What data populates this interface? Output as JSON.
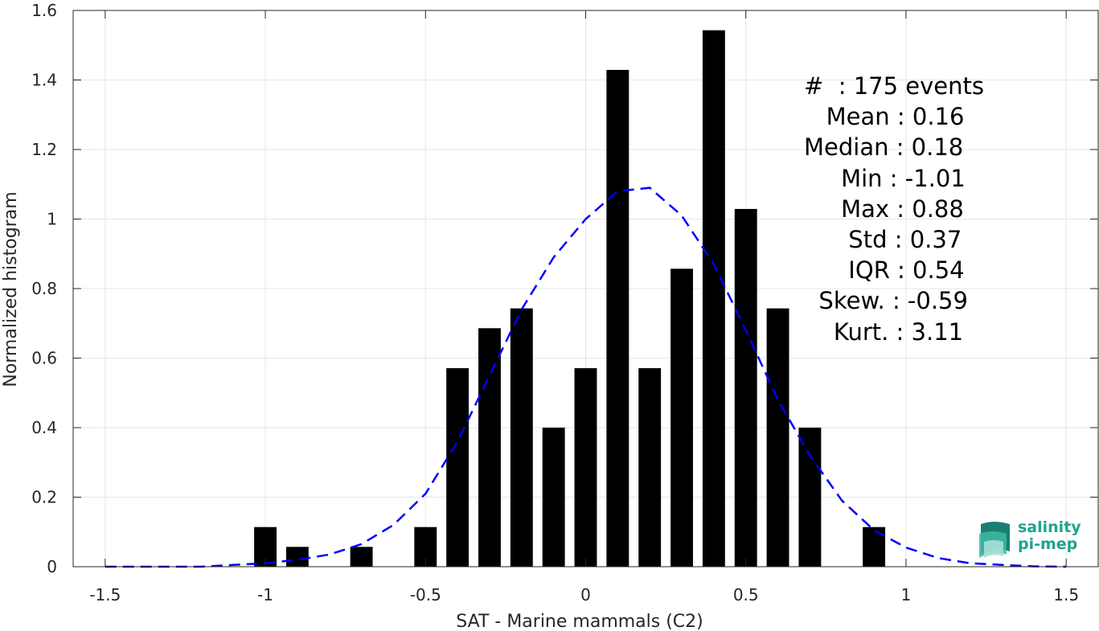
{
  "chart_data": {
    "type": "bar",
    "xlabel": "SAT - Marine mammals (C2)",
    "ylabel": "Normalized histogram",
    "xlim": [
      -1.6,
      1.6
    ],
    "ylim": [
      0,
      1.6
    ],
    "xticks": [
      "-1.5",
      "-1",
      "-0.5",
      "0",
      "0.5",
      "1",
      "1.5"
    ],
    "yticks": [
      "0",
      "0.2",
      "0.4",
      "0.6",
      "0.8",
      "1",
      "1.2",
      "1.4",
      "1.6"
    ],
    "grid": true,
    "bar_width": 0.07,
    "bars": {
      "x": [
        -1.0,
        -0.9,
        -0.7,
        -0.5,
        -0.4,
        -0.3,
        -0.2,
        -0.1,
        0.0,
        0.1,
        0.2,
        0.3,
        0.4,
        0.5,
        0.6,
        0.7,
        0.9
      ],
      "values": [
        0.114,
        0.057,
        0.057,
        0.114,
        0.571,
        0.686,
        0.743,
        0.4,
        0.571,
        1.429,
        0.571,
        0.857,
        1.543,
        1.029,
        0.743,
        0.4,
        0.114
      ],
      "color": "#000000"
    },
    "fit_curve": {
      "style": "dashed",
      "color": "#0000ff",
      "x": [
        -1.5,
        -1.4,
        -1.3,
        -1.2,
        -1.1,
        -1.0,
        -0.9,
        -0.8,
        -0.7,
        -0.6,
        -0.5,
        -0.4,
        -0.3,
        -0.2,
        -0.1,
        0.0,
        0.1,
        0.2,
        0.3,
        0.4,
        0.5,
        0.6,
        0.7,
        0.8,
        0.9,
        1.0,
        1.1,
        1.2,
        1.3,
        1.4,
        1.5
      ],
      "y": [
        0.0,
        0.0,
        0.0,
        0.0,
        0.005,
        0.01,
        0.02,
        0.035,
        0.065,
        0.12,
        0.21,
        0.36,
        0.55,
        0.74,
        0.89,
        1.0,
        1.08,
        1.09,
        1.01,
        0.87,
        0.68,
        0.48,
        0.32,
        0.19,
        0.105,
        0.055,
        0.025,
        0.01,
        0.005,
        0.001,
        0.0
      ]
    }
  },
  "stats": [
    "#  : 175 events",
    "   Mean : 0.16",
    "Median : 0.18",
    "     Min : -1.01",
    "     Max : 0.88",
    "      Std : 0.37",
    "      IQR : 0.54",
    "  Skew. : -0.59",
    "    Kurt. : 3.11"
  ],
  "logo": {
    "line1": "salinity",
    "line2": "pi-mep",
    "color": "#1fa38f"
  }
}
